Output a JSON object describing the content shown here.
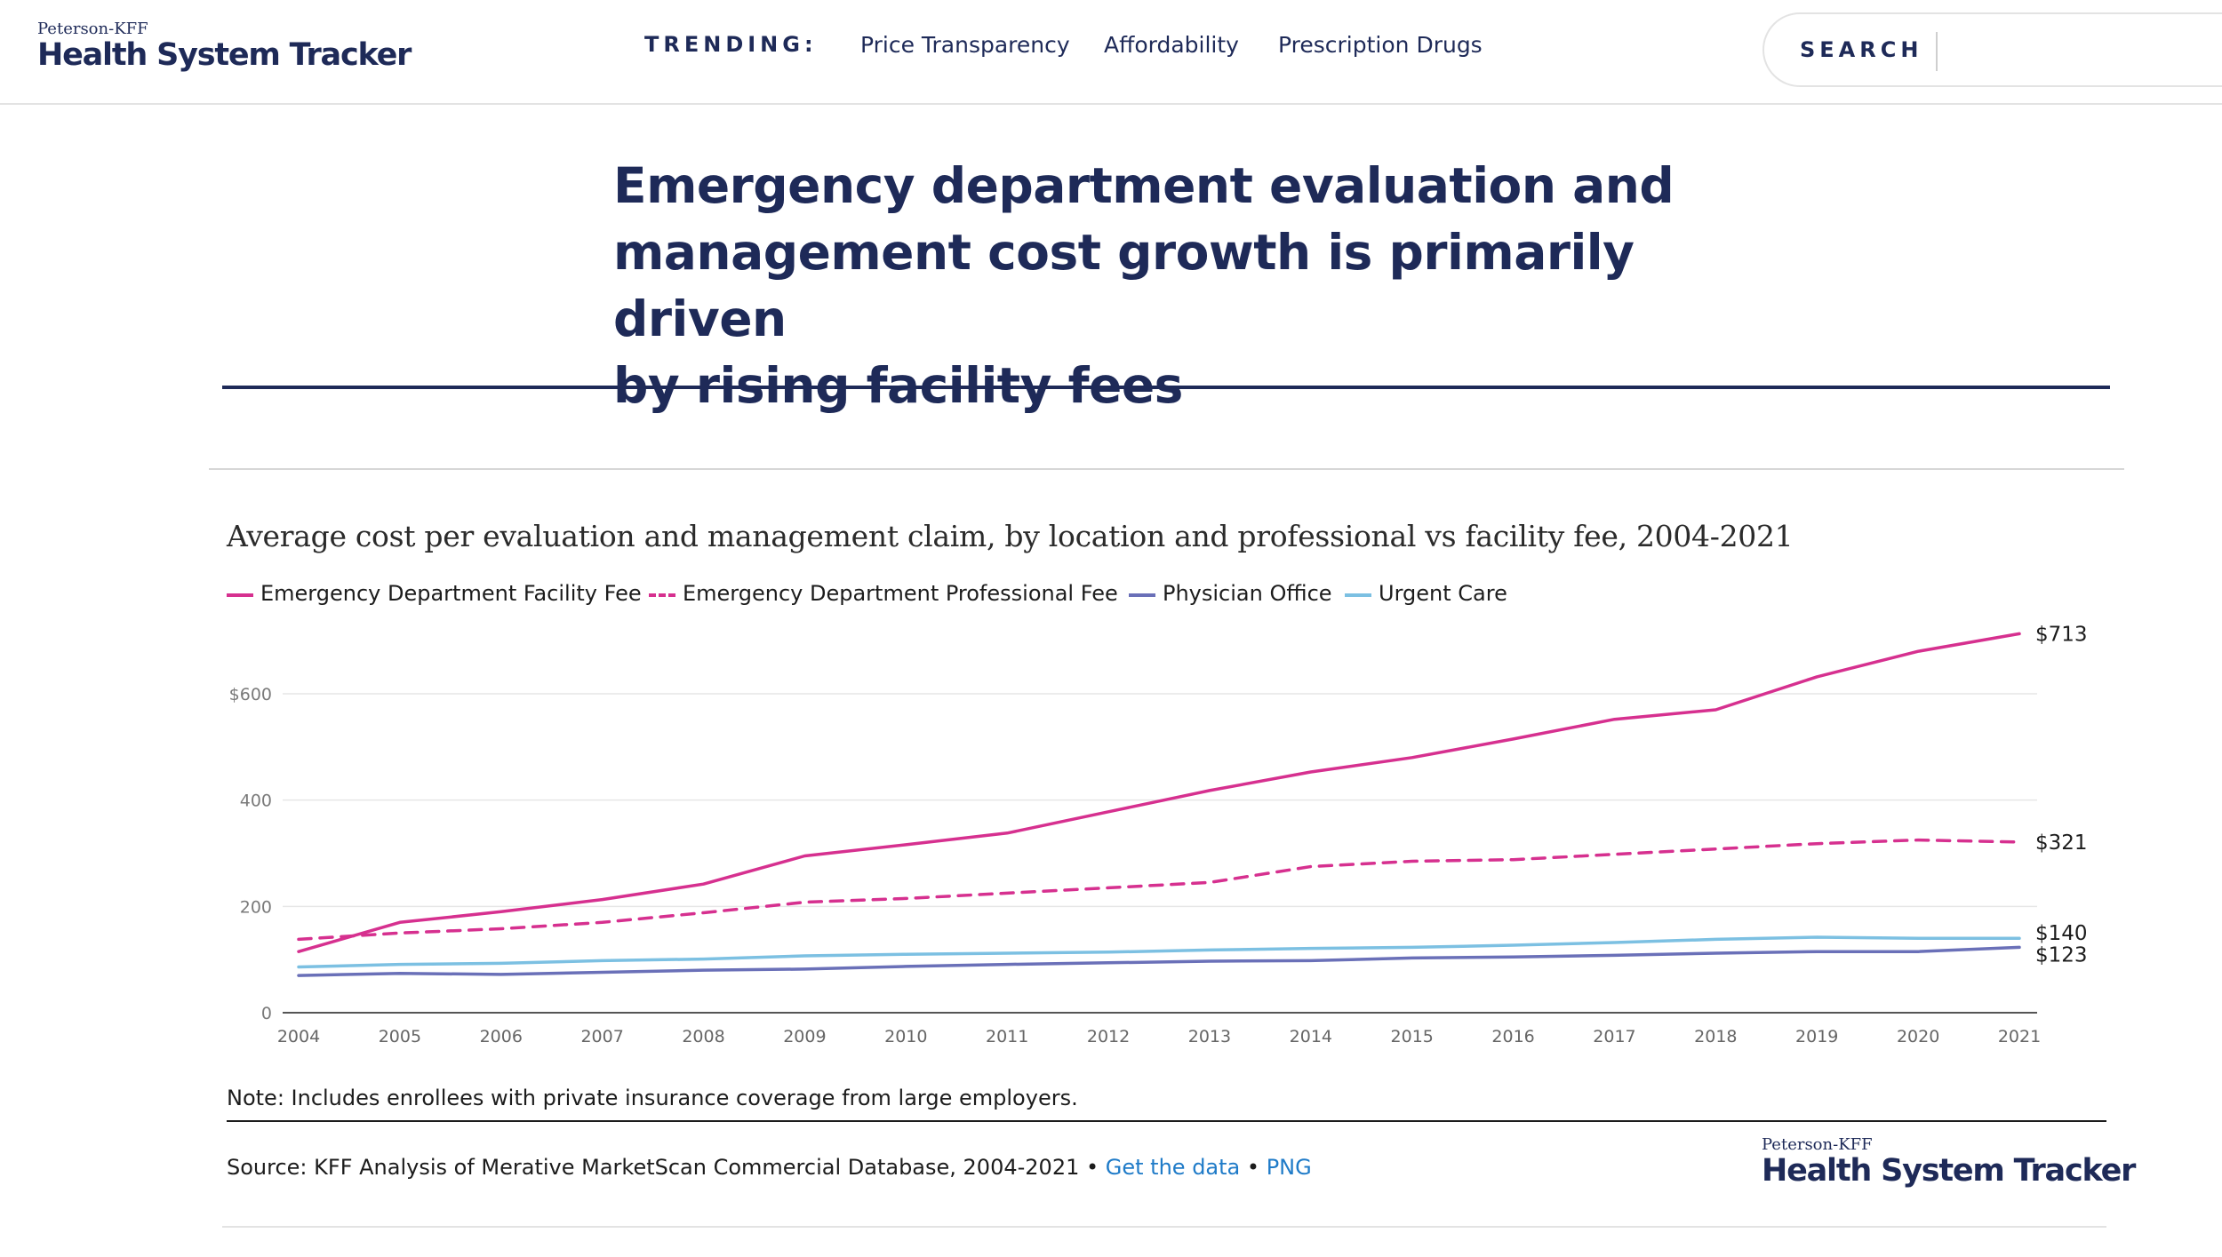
{
  "header": {
    "logo_top": "Peterson-KFF",
    "logo_main": "Health System Tracker",
    "trending_label": "TRENDING:",
    "nav": [
      {
        "label": "Price Transparency"
      },
      {
        "label": "Affordability"
      },
      {
        "label": "Prescription Drugs"
      }
    ],
    "search_label": "SEARCH",
    "search_value": ""
  },
  "headline": {
    "line1": "Emergency department evaluation and",
    "line2": "management cost growth is primarily driven",
    "line3": "by rising facility fees"
  },
  "chart_data": {
    "type": "line",
    "title": "Average cost per evaluation and management claim, by location and professional vs facility fee, 2004-2021",
    "xlabel": "",
    "ylabel": "",
    "x": [
      2004,
      2005,
      2006,
      2007,
      2008,
      2009,
      2010,
      2011,
      2012,
      2013,
      2014,
      2015,
      2016,
      2017,
      2018,
      2019,
      2020,
      2021
    ],
    "x_tick_labels": [
      "2004",
      "2005",
      "2006",
      "2007",
      "2008",
      "2009",
      "2010",
      "2011",
      "2012",
      "2013",
      "2014",
      "2015",
      "2016",
      "2017",
      "2018",
      "2019",
      "2020",
      "2021"
    ],
    "y_ticks": [
      0,
      200,
      400,
      600
    ],
    "y_tick_labels": [
      "0",
      "200",
      "400",
      "$600"
    ],
    "ylim": [
      0,
      720
    ],
    "grid": true,
    "legend_placement": "top-left",
    "series": [
      {
        "name": "Emergency Department Facility Fee",
        "color": "#d6308f",
        "dash": "solid",
        "values": [
          115,
          170,
          190,
          213,
          242,
          295,
          316,
          338,
          378,
          418,
          453,
          480,
          515,
          552,
          570,
          632,
          680,
          713
        ],
        "end_label": "$713"
      },
      {
        "name": "Emergency Department Professional Fee",
        "color": "#d6308f",
        "dash": "dashed",
        "values": [
          138,
          150,
          158,
          170,
          188,
          208,
          215,
          225,
          235,
          245,
          275,
          285,
          288,
          298,
          308,
          318,
          325,
          321
        ],
        "end_label": "$321"
      },
      {
        "name": "Physician Office",
        "color": "#6a70b8",
        "dash": "solid",
        "values": [
          70,
          74,
          72,
          76,
          80,
          82,
          87,
          91,
          94,
          97,
          98,
          103,
          105,
          108,
          112,
          115,
          115,
          123
        ],
        "end_label": "$123"
      },
      {
        "name": "Urgent Care",
        "color": "#7cc0e2",
        "dash": "solid",
        "values": [
          86,
          91,
          93,
          98,
          101,
          107,
          110,
          112,
          114,
          118,
          121,
          123,
          127,
          132,
          138,
          142,
          140,
          140
        ],
        "end_label": "$140"
      }
    ]
  },
  "note": "Note: Includes enrollees with private insurance coverage from large employers.",
  "source": {
    "prefix": "Source: KFF Analysis of Merative MarketScan Commercial Database, 2004-2021 • ",
    "get_data": "Get the data",
    "sep": " • ",
    "png": "PNG"
  },
  "footer_logo": {
    "top": "Peterson-KFF",
    "main": "Health System Tracker"
  }
}
